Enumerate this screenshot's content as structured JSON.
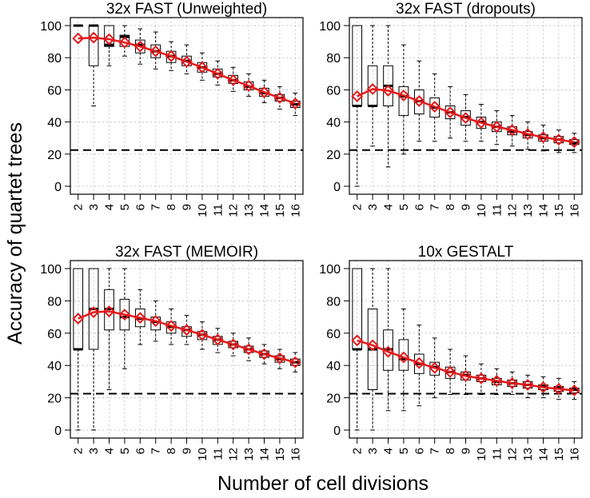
{
  "figure": {
    "ylabel": "Accuracy of quartet trees",
    "xlabel": "Number of cell divisions"
  },
  "chart_data": [
    {
      "type": "boxplot",
      "title": "32x FAST (Unweighted)",
      "categories": [
        "2",
        "3",
        "4",
        "5",
        "6",
        "7",
        "8",
        "9",
        "10",
        "11",
        "12",
        "13",
        "14",
        "15",
        "16"
      ],
      "ylim": [
        0,
        100
      ],
      "yticks": [
        0,
        20,
        40,
        60,
        80,
        100
      ],
      "grid": true,
      "reference_line": 22.5,
      "boxes": [
        {
          "min": 100,
          "q1": 100,
          "median": 100,
          "q3": 100,
          "max": 100
        },
        {
          "min": 50,
          "q1": 75,
          "median": 100,
          "q3": 100,
          "max": 100
        },
        {
          "min": 75,
          "q1": 87,
          "median": 88,
          "q3": 100,
          "max": 100
        },
        {
          "min": 81,
          "q1": 87,
          "median": 93,
          "q3": 94,
          "max": 100
        },
        {
          "min": 76,
          "q1": 83,
          "median": 88,
          "q3": 91,
          "max": 98
        },
        {
          "min": 73,
          "q1": 80,
          "median": 84,
          "q3": 88,
          "max": 96
        },
        {
          "min": 72,
          "q1": 77,
          "median": 81,
          "q3": 84,
          "max": 90
        },
        {
          "min": 70,
          "q1": 75,
          "median": 78,
          "q3": 81,
          "max": 88
        },
        {
          "min": 66,
          "q1": 71,
          "median": 74,
          "q3": 77,
          "max": 83
        },
        {
          "min": 63,
          "q1": 68,
          "median": 70,
          "q3": 73,
          "max": 78
        },
        {
          "min": 59,
          "q1": 64,
          "median": 66,
          "q3": 69,
          "max": 74
        },
        {
          "min": 56,
          "q1": 60,
          "median": 62,
          "q3": 65,
          "max": 70
        },
        {
          "min": 52,
          "q1": 56,
          "median": 58,
          "q3": 61,
          "max": 66
        },
        {
          "min": 48,
          "q1": 53,
          "median": 55,
          "q3": 57,
          "max": 62
        },
        {
          "min": 44,
          "q1": 49,
          "median": 51,
          "q3": 53,
          "max": 58
        }
      ],
      "mean_series": {
        "name": "mean",
        "values": [
          92,
          92.5,
          91.5,
          89.5,
          87,
          84,
          81,
          77.5,
          74,
          70,
          66,
          62.5,
          58.5,
          55,
          51.5
        ]
      }
    },
    {
      "type": "boxplot",
      "title": "32x FAST (dropouts)",
      "categories": [
        "2",
        "3",
        "4",
        "5",
        "6",
        "7",
        "8",
        "9",
        "10",
        "11",
        "12",
        "13",
        "14",
        "15",
        "16"
      ],
      "ylim": [
        0,
        100
      ],
      "yticks": [
        0,
        20,
        40,
        60,
        80,
        100
      ],
      "grid": true,
      "reference_line": 22.5,
      "boxes": [
        {
          "min": 0,
          "q1": 50,
          "median": 50,
          "q3": 100,
          "max": 100
        },
        {
          "min": 25,
          "q1": 50,
          "median": 50,
          "q3": 75,
          "max": 100
        },
        {
          "min": 12,
          "q1": 50,
          "median": 62.5,
          "q3": 75,
          "max": 100
        },
        {
          "min": 20,
          "q1": 44,
          "median": 56,
          "q3": 62,
          "max": 88
        },
        {
          "min": 28,
          "q1": 45,
          "median": 53,
          "q3": 60,
          "max": 78
        },
        {
          "min": 28,
          "q1": 43,
          "median": 49,
          "q3": 55,
          "max": 70
        },
        {
          "min": 30,
          "q1": 42,
          "median": 46,
          "q3": 50,
          "max": 62
        },
        {
          "min": 28,
          "q1": 38,
          "median": 43,
          "q3": 47,
          "max": 57
        },
        {
          "min": 28,
          "q1": 36,
          "median": 40,
          "q3": 43,
          "max": 51
        },
        {
          "min": 26,
          "q1": 34,
          "median": 37,
          "q3": 40,
          "max": 47
        },
        {
          "min": 25,
          "q1": 32,
          "median": 34,
          "q3": 37,
          "max": 44
        },
        {
          "min": 23,
          "q1": 30,
          "median": 32,
          "q3": 34,
          "max": 40
        },
        {
          "min": 22,
          "q1": 28,
          "median": 30,
          "q3": 32,
          "max": 38
        },
        {
          "min": 21,
          "q1": 27,
          "median": 29,
          "q3": 31,
          "max": 35
        },
        {
          "min": 21,
          "q1": 26,
          "median": 27,
          "q3": 29,
          "max": 33
        }
      ],
      "mean_series": {
        "name": "mean",
        "values": [
          56,
          60.5,
          59.5,
          56.5,
          53,
          49.5,
          46,
          42.5,
          39.5,
          37,
          35,
          32.5,
          30.5,
          29,
          27.5
        ]
      }
    },
    {
      "type": "boxplot",
      "title": "32x FAST (MEMOIR)",
      "categories": [
        "2",
        "3",
        "4",
        "5",
        "6",
        "7",
        "8",
        "9",
        "10",
        "11",
        "12",
        "13",
        "14",
        "15",
        "16"
      ],
      "ylim": [
        0,
        100
      ],
      "yticks": [
        0,
        20,
        40,
        60,
        80,
        100
      ],
      "grid": true,
      "reference_line": 22.5,
      "boxes": [
        {
          "min": 0,
          "q1": 50,
          "median": 50,
          "q3": 100,
          "max": 100
        },
        {
          "min": 0,
          "q1": 50,
          "median": 75,
          "q3": 100,
          "max": 100
        },
        {
          "min": 25,
          "q1": 62,
          "median": 75,
          "q3": 87,
          "max": 100
        },
        {
          "min": 38,
          "q1": 62,
          "median": 70,
          "q3": 81,
          "max": 100
        },
        {
          "min": 53,
          "q1": 64,
          "median": 69,
          "q3": 75,
          "max": 87
        },
        {
          "min": 55,
          "q1": 62,
          "median": 67,
          "q3": 70,
          "max": 80
        },
        {
          "min": 53,
          "q1": 60,
          "median": 64,
          "q3": 67,
          "max": 75
        },
        {
          "min": 53,
          "q1": 58,
          "median": 62,
          "q3": 64,
          "max": 71
        },
        {
          "min": 50,
          "q1": 56,
          "median": 59,
          "q3": 61,
          "max": 67
        },
        {
          "min": 48,
          "q1": 53,
          "median": 56,
          "q3": 58,
          "max": 63
        },
        {
          "min": 46,
          "q1": 51,
          "median": 53,
          "q3": 55,
          "max": 60
        },
        {
          "min": 43,
          "q1": 48,
          "median": 50,
          "q3": 52,
          "max": 57
        },
        {
          "min": 41,
          "q1": 45,
          "median": 47,
          "q3": 49,
          "max": 53
        },
        {
          "min": 38,
          "q1": 42,
          "median": 44,
          "q3": 46,
          "max": 50
        },
        {
          "min": 36,
          "q1": 40,
          "median": 42,
          "q3": 44,
          "max": 48
        }
      ],
      "mean_series": {
        "name": "mean",
        "values": [
          69,
          73,
          73.5,
          71.5,
          69.5,
          67.5,
          64.5,
          62,
          59,
          56,
          53,
          50,
          47,
          44.5,
          42
        ]
      }
    },
    {
      "type": "boxplot",
      "title": "10x GESTALT",
      "categories": [
        "2",
        "3",
        "4",
        "5",
        "6",
        "7",
        "8",
        "9",
        "10",
        "11",
        "12",
        "13",
        "14",
        "15",
        "16"
      ],
      "ylim": [
        0,
        100
      ],
      "yticks": [
        0,
        20,
        40,
        60,
        80,
        100
      ],
      "grid": true,
      "reference_line": 22.5,
      "boxes": [
        {
          "min": 0,
          "q1": 50,
          "median": 50,
          "q3": 100,
          "max": 100
        },
        {
          "min": 0,
          "q1": 25,
          "median": 50,
          "q3": 75,
          "max": 100
        },
        {
          "min": 12,
          "q1": 37,
          "median": 50,
          "q3": 62,
          "max": 100
        },
        {
          "min": 12,
          "q1": 37,
          "median": 44,
          "q3": 56,
          "max": 75
        },
        {
          "min": 15,
          "q1": 35,
          "median": 41,
          "q3": 47,
          "max": 65
        },
        {
          "min": 20,
          "q1": 34,
          "median": 39,
          "q3": 42,
          "max": 57
        },
        {
          "min": 22,
          "q1": 32,
          "median": 36,
          "q3": 39,
          "max": 50
        },
        {
          "min": 22,
          "q1": 31,
          "median": 34,
          "q3": 36,
          "max": 46
        },
        {
          "min": 22,
          "q1": 30,
          "median": 32,
          "q3": 34,
          "max": 41
        },
        {
          "min": 22,
          "q1": 28,
          "median": 30,
          "q3": 32,
          "max": 38
        },
        {
          "min": 22,
          "q1": 27,
          "median": 29,
          "q3": 31,
          "max": 36
        },
        {
          "min": 20,
          "q1": 26,
          "median": 28,
          "q3": 30,
          "max": 34
        },
        {
          "min": 20,
          "q1": 25,
          "median": 27,
          "q3": 28,
          "max": 33
        },
        {
          "min": 19,
          "q1": 24,
          "median": 26,
          "q3": 27,
          "max": 32
        },
        {
          "min": 19,
          "q1": 23,
          "median": 25,
          "q3": 26,
          "max": 30
        }
      ],
      "mean_series": {
        "name": "mean",
        "values": [
          55.5,
          52.5,
          48.5,
          45,
          41.5,
          38.5,
          36,
          33.5,
          32,
          30.5,
          29,
          28,
          26.5,
          25.5,
          24.5
        ]
      }
    }
  ]
}
